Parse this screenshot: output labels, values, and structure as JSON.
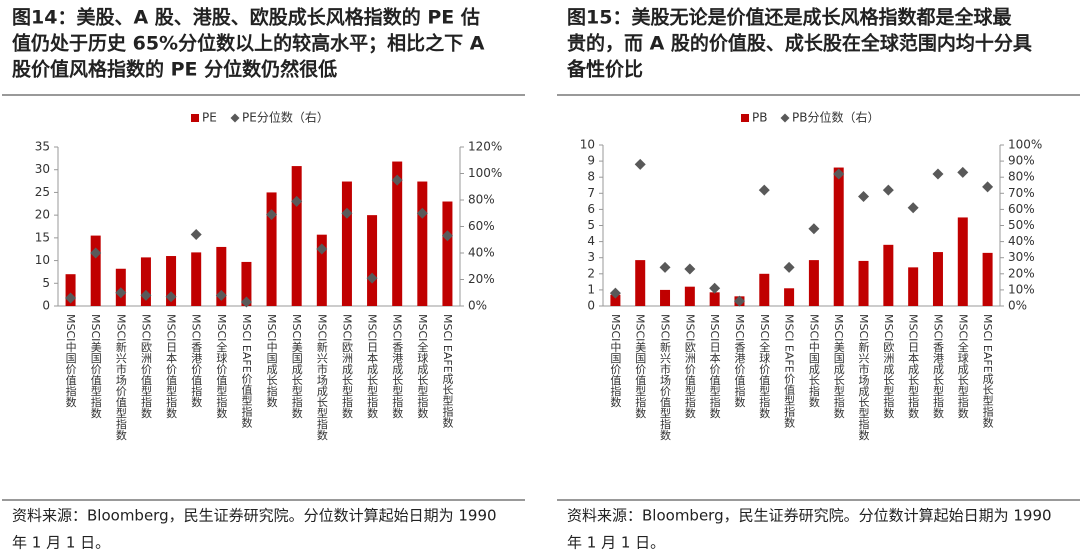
{
  "chart_data": [
    {
      "type": "bar",
      "title": [
        "图14：美股、A 股、港股、欧股成长风格指数的 PE 估",
        "值仍处于历史 65%分位数以上的较高水平；相比之下 A",
        "股价值风格指数的 PE 分位数仍然很低"
      ],
      "categories": [
        "MSCI中国价值指数",
        "MSCI美国价值型指数",
        "MSCI新兴市场价值型指数",
        "MSCI欧洲价值型指数",
        "MSCI日本价值型指数",
        "MSCI香港价值指数",
        "MSCI全球价值型指数",
        "MSCI EAFE价值型指数",
        "MSCI中国成长指数",
        "MSCI美国成长型指数",
        "MSCI新兴市场成长型指数",
        "MSCI欧洲成长型指数",
        "MSCI日本成长型指数",
        "MSCI香港成长型指数",
        "MSCI全球成长型指数",
        "MSCI EAFE成长型指数"
      ],
      "series": [
        {
          "name": "PE",
          "color": "#c00000",
          "values": [
            7,
            15.5,
            8.2,
            10.7,
            11,
            11.8,
            13,
            9.7,
            25,
            30.8,
            15.7,
            27.4,
            20,
            31.8,
            27.4,
            23
          ]
        },
        {
          "name": "PE分位数（右）",
          "color": "#595959",
          "axis": "y2",
          "values": [
            6,
            40,
            10,
            8,
            7,
            54,
            8,
            3,
            69,
            79,
            43,
            70,
            21,
            95,
            70,
            53
          ]
        }
      ],
      "ylim": [
        0,
        35
      ],
      "yticks": [
        0,
        5,
        10,
        15,
        20,
        25,
        30,
        35
      ],
      "y2lim": [
        0,
        120
      ],
      "y2ticks": [
        {
          "value": 0,
          "label": "0%"
        },
        {
          "value": 20,
          "label": "20%"
        },
        {
          "value": 40,
          "label": "40%"
        },
        {
          "value": 60,
          "label": "60%"
        },
        {
          "value": 80,
          "label": "80%"
        },
        {
          "value": 100,
          "label": "100%"
        },
        {
          "value": 120,
          "label": "120%"
        }
      ],
      "source": [
        "资料来源：Bloomberg，民生证券研究院。分位数计算起始日期为 1990",
        "年 1 月 1 日。"
      ]
    },
    {
      "type": "bar",
      "title": [
        "图15：美股无论是价值还是成长风格指数都是全球最",
        "贵的，而 A 股的价值股、成长股在全球范围内均十分具",
        "备性价比"
      ],
      "categories": [
        "MSCI中国价值指数",
        "MSCI美国价值型指数",
        "MSCI新兴市场价值型指数",
        "MSCI欧洲价值型指数",
        "MSCI日本价值型指数",
        "MSCI香港价值指数",
        "MSCI全球价值型指数",
        "MSCI EAFE价值型指数",
        "MSCI中国成长指数",
        "MSCI美国成长型指数",
        "MSCI新兴市场成长型指数",
        "MSCI欧洲成长型指数",
        "MSCI日本成长型指数",
        "MSCI香港成长型指数",
        "MSCI全球成长型指数",
        "MSCI EAFE成长型指数"
      ],
      "series": [
        {
          "name": "PB",
          "color": "#c00000",
          "values": [
            0.7,
            2.85,
            1.0,
            1.2,
            0.85,
            0.6,
            2.0,
            1.1,
            2.85,
            8.6,
            2.8,
            3.8,
            2.4,
            3.35,
            5.5,
            3.3
          ]
        },
        {
          "name": "PB分位数（右）",
          "color": "#595959",
          "axis": "y2",
          "values": [
            8,
            88,
            24,
            23,
            11,
            3,
            72,
            24,
            48,
            82,
            68,
            72,
            61,
            82,
            83,
            74
          ]
        }
      ],
      "ylim": [
        0,
        10
      ],
      "yticks": [
        0,
        1,
        2,
        3,
        4,
        5,
        6,
        7,
        8,
        9,
        10
      ],
      "y2lim": [
        0,
        100
      ],
      "y2ticks": [
        {
          "value": 0,
          "label": "0%"
        },
        {
          "value": 10,
          "label": "10%"
        },
        {
          "value": 20,
          "label": "20%"
        },
        {
          "value": 30,
          "label": "30%"
        },
        {
          "value": 40,
          "label": "40%"
        },
        {
          "value": 50,
          "label": "50%"
        },
        {
          "value": 60,
          "label": "60%"
        },
        {
          "value": 70,
          "label": "70%"
        },
        {
          "value": 80,
          "label": "80%"
        },
        {
          "value": 90,
          "label": "90%"
        },
        {
          "value": 100,
          "label": "100%"
        }
      ],
      "source": [
        "资料来源：Bloomberg，民生证券研究院。分位数计算起始日期为 1990",
        "年 1 月 1 日。"
      ]
    }
  ]
}
